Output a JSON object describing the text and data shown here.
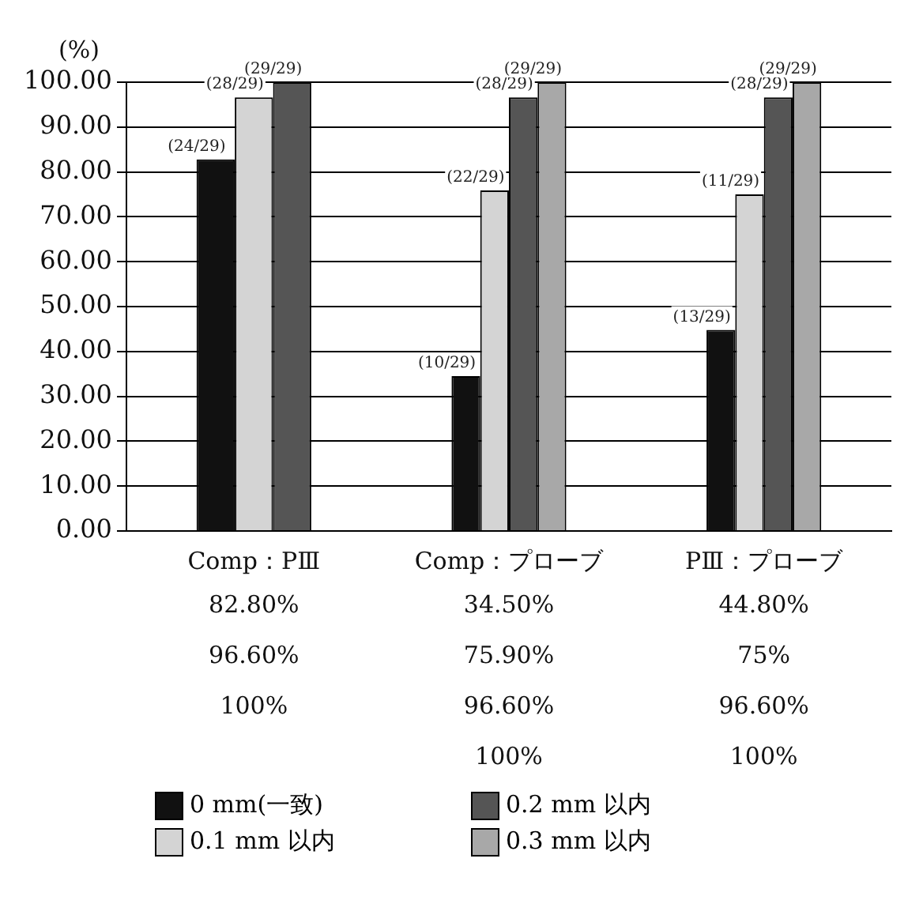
{
  "chart_data": {
    "type": "bar",
    "ylabel": "(%)",
    "categories": [
      "Comp：PⅢ",
      "Comp：プローブ",
      "PⅢ：プローブ"
    ],
    "series": [
      {
        "name": "0 mm(一致)",
        "color": "#111111",
        "values": [
          82.8,
          34.5,
          44.8
        ],
        "value_labels": [
          "(24/29)",
          "(10/29)",
          "(13/29)"
        ]
      },
      {
        "name": "0.1 mm 以内",
        "color": "#d4d4d4",
        "values": [
          96.6,
          75.9,
          75
        ],
        "value_labels": [
          "(28/29)",
          "(22/29)",
          "(11/29)"
        ]
      },
      {
        "name": "0.2 mm 以内",
        "color": "#555555",
        "values": [
          100,
          96.6,
          96.6
        ],
        "value_labels": [
          "(29/29)",
          "(28/29)",
          "(28/29)"
        ]
      },
      {
        "name": "0.3 mm 以内",
        "color": "#a8a8a8",
        "values": [
          null,
          100,
          100
        ],
        "value_labels": [
          null,
          "(29/29)",
          "(29/29)"
        ]
      }
    ],
    "ylim": [
      0,
      100
    ],
    "yticks": [
      {
        "value": 0,
        "label": "0.00"
      },
      {
        "value": 10,
        "label": "10.00"
      },
      {
        "value": 20,
        "label": "20.00"
      },
      {
        "value": 30,
        "label": "30.00"
      },
      {
        "value": 40,
        "label": "40.00"
      },
      {
        "value": 50,
        "label": "50.00"
      },
      {
        "value": 60,
        "label": "60.00"
      },
      {
        "value": 70,
        "label": "70.00"
      },
      {
        "value": 80,
        "label": "80.00"
      },
      {
        "value": 90,
        "label": "90.00"
      },
      {
        "value": 100,
        "label": "100.00"
      }
    ],
    "grid": "y",
    "legend": "bottom",
    "annotations": [
      "82.80%",
      "96.60%",
      "100%",
      "34.50%",
      "75.90%",
      "96.60%",
      "100%",
      "44.80%",
      "75%",
      "96.60%",
      "100%"
    ]
  }
}
